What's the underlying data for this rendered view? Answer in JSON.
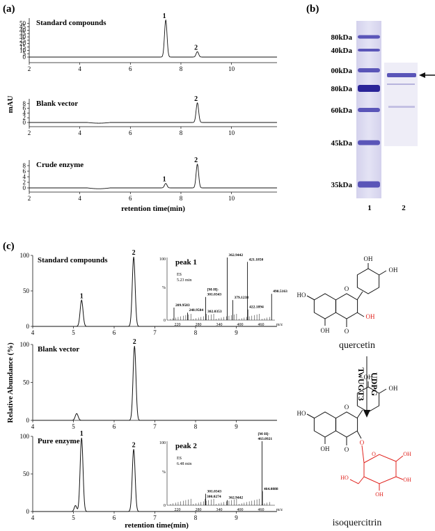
{
  "panel_a": {
    "label": "(a)",
    "ylabel": "mAU",
    "xlabel": "retention time(min)",
    "x_ticks": [
      "2",
      "4",
      "6",
      "8",
      "10"
    ],
    "subplots": [
      {
        "title": "Standard compounds",
        "y_ticks": [
          "0",
          "5",
          "10",
          "15",
          "20",
          "25",
          "30",
          "35",
          "40",
          "45",
          "50"
        ],
        "peaks": [
          {
            "label": "1",
            "x": 7.4,
            "height": 55
          },
          {
            "label": "2",
            "x": 8.65,
            "height": 8
          }
        ],
        "ymax": 58
      },
      {
        "title": "Blank vector",
        "y_ticks": [
          "0",
          "2",
          "4",
          "6",
          "8"
        ],
        "peaks": [
          {
            "label": "2",
            "x": 8.65,
            "height": 8.3
          }
        ],
        "ymax": 10
      },
      {
        "title": "Crude enzyme",
        "y_ticks": [
          "0",
          "2",
          "4",
          "6",
          "8"
        ],
        "peaks": [
          {
            "label": "1",
            "x": 7.4,
            "height": 1.6
          },
          {
            "label": "2",
            "x": 8.65,
            "height": 8.5
          }
        ],
        "ymax": 10
      }
    ]
  },
  "panel_b": {
    "label": "(b)",
    "markers": [
      "80kDa",
      "40kDa",
      "00kDa",
      "80kDa",
      "60kDa",
      "45kDa",
      "35kDa"
    ],
    "lane_labels": [
      "1",
      "2"
    ]
  },
  "panel_c": {
    "label": "(c)",
    "ylabel": "Relative Abundance (%)",
    "xlabel": "retention time(min)",
    "x_ticks": [
      "4",
      "5",
      "6",
      "7",
      "8",
      "9"
    ],
    "y_ticks": [
      "0",
      "50",
      "100"
    ],
    "subplots": [
      {
        "title": "Standard compounds",
        "peaks": [
          {
            "label": "1",
            "x": 5.2,
            "height": 37
          },
          {
            "label": "2",
            "x": 6.48,
            "height": 98
          }
        ]
      },
      {
        "title": "Blank vector",
        "peaks": [
          {
            "label": "",
            "x": 5.08,
            "height": 9
          },
          {
            "label": "2",
            "x": 6.5,
            "height": 98
          }
        ]
      },
      {
        "title": "Pure enzyme",
        "peaks": [
          {
            "label": "1",
            "x": 5.2,
            "height": 98
          },
          {
            "label": "2",
            "x": 6.48,
            "height": 83
          }
        ]
      }
    ],
    "inset1": {
      "title": "peak 1",
      "ion": "ES",
      "time": "5.23 min",
      "y_top": "100",
      "y_mid": "%",
      "y_bottom": "0",
      "xunit": "m/z",
      "x_ticks": [
        "220",
        "280",
        "340",
        "400",
        "460"
      ],
      "mz_peaks": [
        {
          "mz": 209.9583,
          "rel": 20,
          "label": "209.9583"
        },
        {
          "mz": 248.9584,
          "rel": 12,
          "label": "248.9584"
        },
        {
          "mz": 301.0343,
          "rel": 37,
          "label": "[M-H]-\n301.0343"
        },
        {
          "mz": 302.0353,
          "rel": 10,
          "label": "302.0353"
        },
        {
          "mz": 362.9442,
          "rel": 100,
          "label": "362.9442"
        },
        {
          "mz": 379.1238,
          "rel": 32,
          "label": "379.1238"
        },
        {
          "mz": 421.185,
          "rel": 93,
          "label": "421.1850"
        },
        {
          "mz": 422.1894,
          "rel": 17,
          "label": "422.1894"
        },
        {
          "mz": 490.5163,
          "rel": 42,
          "label": "490.5163"
        }
      ]
    },
    "inset2": {
      "title": "peak 2",
      "ion": "ES",
      "time": "6.48 min",
      "y_top": "100",
      "y_mid": "%",
      "y_bottom": "0",
      "xunit": "m/z",
      "x_ticks": [
        "220",
        "280",
        "340",
        "400",
        "460"
      ],
      "mz_peaks": [
        {
          "mz": 300.0274,
          "rel": 10,
          "label": "300.0274"
        },
        {
          "mz": 301.0343,
          "rel": 18,
          "label": "301.0343"
        },
        {
          "mz": 362.9442,
          "rel": 8,
          "label": "362.9442"
        },
        {
          "mz": 463.0921,
          "rel": 100,
          "label": "[M-H]-\n463.0921"
        },
        {
          "mz": 464.0888,
          "rel": 22,
          "label": "464.0888"
        }
      ]
    }
  },
  "scheme": {
    "reactant": "quercetin",
    "product": "isoquercitrin",
    "cofactor": "UDPG",
    "enzyme": "TwUGT3",
    "oh": "OH",
    "o": "O",
    "ho": "HO",
    "accent_red": "#e0201b"
  }
}
